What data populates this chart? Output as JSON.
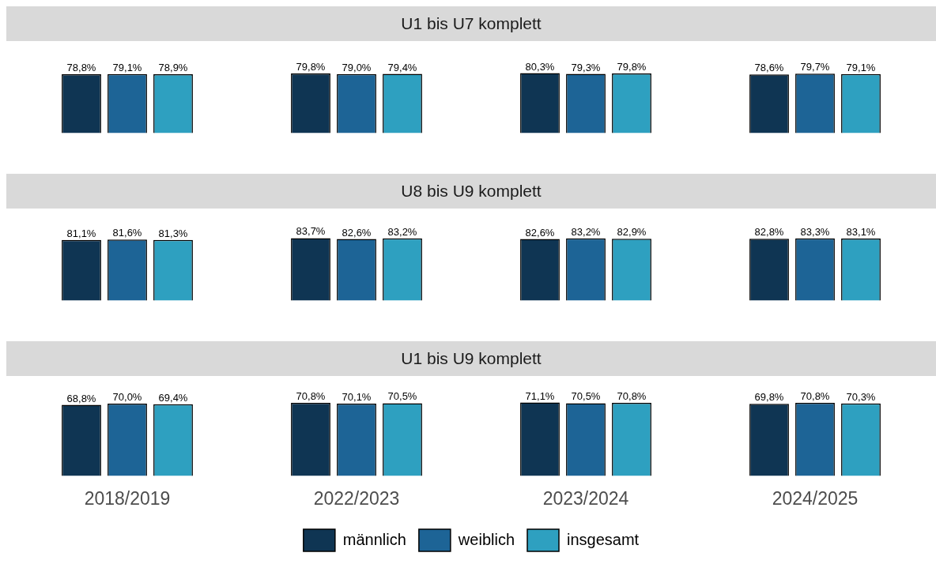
{
  "chart_data": [
    {
      "type": "bar",
      "title": "U1 bis U7 komplett",
      "categories": [
        null,
        null,
        null,
        null
      ],
      "series": [
        {
          "color": "#0f3553",
          "values": [
            78.8,
            79.8,
            80.3,
            78.6
          ],
          "value_labels": [
            "78,8%",
            "79,8%",
            "80,3%",
            "78,6%"
          ]
        },
        {
          "color": "#1d6496",
          "values": [
            79.1,
            79.0,
            79.3,
            79.7
          ],
          "value_labels": [
            "79,1%",
            "79,0%",
            "79,3%",
            "79,7%"
          ]
        },
        {
          "color": "#2ea0c0",
          "values": [
            78.9,
            79.4,
            79.8,
            79.1
          ],
          "value_labels": [
            "78,9%",
            "79,4%",
            "79,8%",
            "79,1%"
          ]
        }
      ]
    },
    {
      "type": "bar",
      "title": "U8 bis U9 komplett",
      "categories": [
        null,
        null,
        null,
        null
      ],
      "series": [
        {
          "color": "#0f3553",
          "values": [
            81.1,
            83.7,
            82.6,
            82.8
          ],
          "value_labels": [
            "81,1%",
            "83,7%",
            "82,6%",
            "82,8%"
          ]
        },
        {
          "color": "#1d6496",
          "values": [
            81.6,
            82.6,
            83.2,
            83.3
          ],
          "value_labels": [
            "81,6%",
            "82,6%",
            "83,2%",
            "83,3%"
          ]
        },
        {
          "color": "#2ea0c0",
          "values": [
            81.3,
            83.2,
            82.9,
            83.1
          ],
          "value_labels": [
            "81,3%",
            "83,2%",
            "82,9%",
            "83,1%"
          ]
        }
      ]
    },
    {
      "type": "bar",
      "title": "U1 bis U9 komplett",
      "categories": [
        "2018/2019",
        "2022/2023",
        "2023/2024",
        "2024/2025"
      ],
      "tick_labels": "x",
      "legend": "bottom",
      "series": [
        {
          "name": "männlich",
          "color": "#0f3553",
          "values": [
            68.8,
            70.8,
            71.1,
            69.8
          ],
          "value_labels": [
            "68,8%",
            "70,8%",
            "71,1%",
            "69,8%"
          ]
        },
        {
          "name": "weiblich",
          "color": "#1d6496",
          "values": [
            70.0,
            70.1,
            70.5,
            70.8
          ],
          "value_labels": [
            "70,0%",
            "70,1%",
            "70,5%",
            "70,8%"
          ]
        },
        {
          "name": "insgesamt",
          "color": "#2ea0c0",
          "values": [
            69.4,
            70.5,
            70.8,
            70.3
          ],
          "value_labels": [
            "69,4%",
            "70,5%",
            "70,8%",
            "70,3%"
          ]
        }
      ]
    }
  ]
}
